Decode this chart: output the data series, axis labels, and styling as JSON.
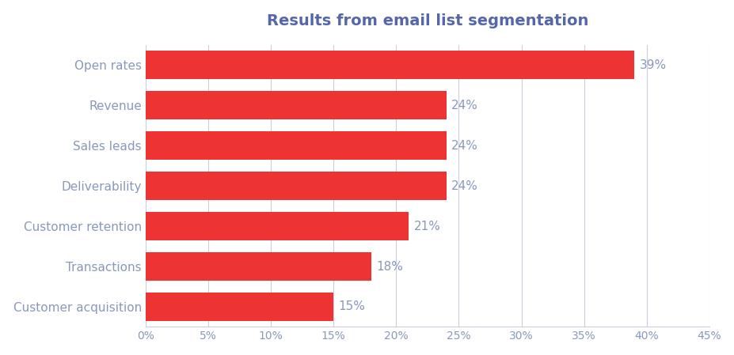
{
  "title": "Results from email list segmentation",
  "categories": [
    "Customer acquisition",
    "Transactions",
    "Customer retention",
    "Deliverability",
    "Sales leads",
    "Revenue",
    "Open rates"
  ],
  "values": [
    15,
    18,
    21,
    24,
    24,
    24,
    39
  ],
  "bar_color": "#ee3333",
  "label_color": "#8899bb",
  "title_color": "#5566aa",
  "background_color": "#ffffff",
  "grid_color": "#ccccdd",
  "xlim": [
    0,
    45
  ],
  "xticks": [
    0,
    5,
    10,
    15,
    20,
    25,
    30,
    35,
    40,
    45
  ],
  "bar_height": 0.7,
  "title_fontsize": 14,
  "label_fontsize": 11,
  "tick_fontsize": 10,
  "value_fontsize": 11
}
